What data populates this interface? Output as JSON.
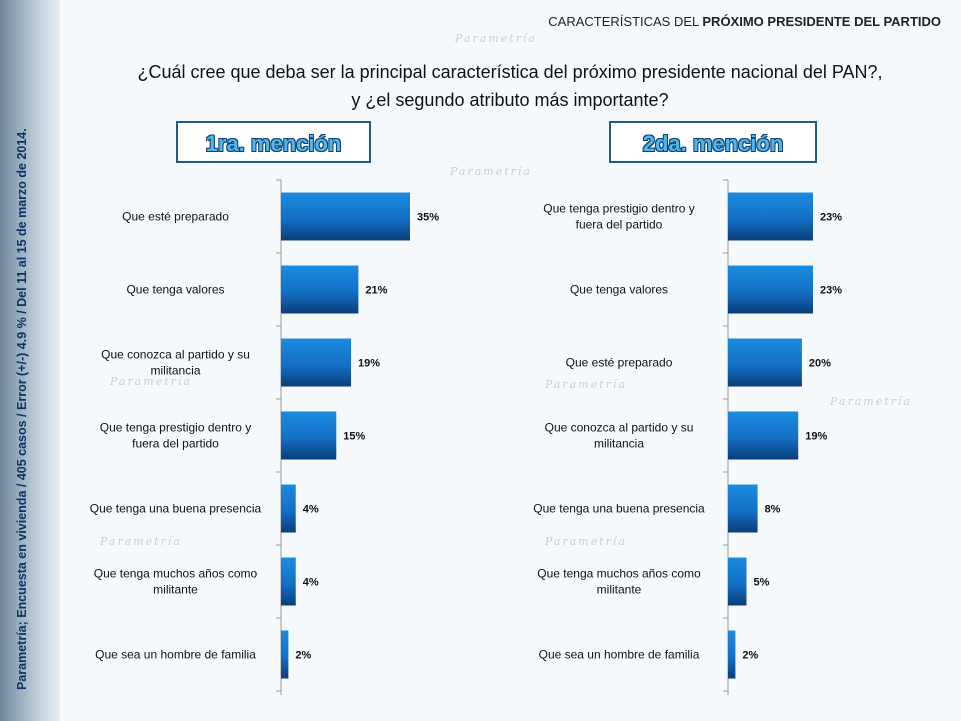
{
  "header": {
    "prefix": "CARACTERÍSTICAS DEL ",
    "bold": "PRÓXIMO PRESIDENTE DEL PARTIDO"
  },
  "question": {
    "line1": "¿Cuál cree que deba ser la principal característica del próximo presidente nacional del PAN?,",
    "line2": "y ¿el segundo atributo más importante?"
  },
  "sidebar": {
    "text": "Parametría; Encuesta en vivienda / 405 casos / Error (+/-) 4.9 % / Del 11 al 15 de marzo de 2014."
  },
  "watermark": "Parametría",
  "colors": {
    "bar_dark": "#0a3d7a",
    "bar_light": "#1a8be0",
    "title_fill": "#4fb6f0"
  },
  "chart_data": [
    {
      "type": "bar",
      "orientation": "horizontal",
      "title": "1ra. mención",
      "categories": [
        "Que esté preparado",
        "Que tenga valores",
        "Que conozca al partido y su militancia",
        "Que tenga prestigio dentro y fuera del partido",
        "Que tenga una buena presencia",
        "Que tenga muchos años como militante",
        "Que sea un hombre de familia"
      ],
      "values": [
        35,
        21,
        19,
        15,
        4,
        4,
        2
      ],
      "unit": "%"
    },
    {
      "type": "bar",
      "orientation": "horizontal",
      "title": "2da. mención",
      "categories": [
        "Que tenga prestigio dentro y fuera del partido",
        "Que tenga valores",
        "Que esté preparado",
        "Que conozca al partido y su militancia",
        "Que tenga una buena presencia",
        "Que tenga muchos años como militante",
        "Que sea un hombre de familia"
      ],
      "values": [
        23,
        23,
        20,
        19,
        8,
        5,
        2
      ],
      "unit": "%"
    }
  ]
}
